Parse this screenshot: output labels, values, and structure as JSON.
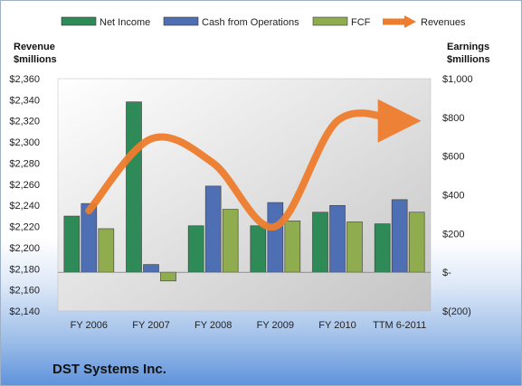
{
  "chart_data": {
    "type": "bar",
    "title": "DST Systems Inc.",
    "categories": [
      "FY 2006",
      "FY 2007",
      "FY 2008",
      "FY 2009",
      "FY 2010",
      "TTM 6-2011"
    ],
    "y_left": {
      "label_line1": "Revenue",
      "label_line2": "$millions",
      "ylim": [
        2140,
        2360
      ],
      "ticks": [
        2140,
        2160,
        2180,
        2200,
        2220,
        2240,
        2260,
        2280,
        2300,
        2320,
        2340,
        2360
      ],
      "tick_labels": [
        "$2,140",
        "$2,160",
        "$2,180",
        "$2,200",
        "$2,220",
        "$2,240",
        "$2,260",
        "$2,280",
        "$2,300",
        "$2,320",
        "$2,340",
        "$2,360"
      ]
    },
    "y_right": {
      "label_line1": "Earnings",
      "label_line2": "$millions",
      "ylim": [
        -200,
        1000
      ],
      "ticks": [
        -200,
        0,
        200,
        400,
        600,
        800,
        1000
      ],
      "tick_labels": [
        "$(200)",
        "$-",
        "$200",
        "$400",
        "$600",
        "$800",
        "$1,000"
      ]
    },
    "bar_series": [
      {
        "name": "Net Income",
        "color": "#2e8b57",
        "axis": "right",
        "values": [
          290,
          880,
          240,
          240,
          310,
          250
        ]
      },
      {
        "name": "Cash from Operations",
        "color": "#4f6fb5",
        "axis": "right",
        "values": [
          355,
          40,
          445,
          360,
          345,
          375
        ]
      },
      {
        "name": "FCF",
        "color": "#8fac4e",
        "axis": "right",
        "values": [
          225,
          -45,
          325,
          265,
          260,
          310
        ]
      }
    ],
    "line_series": [
      {
        "name": "Revenues",
        "color": "#ee7d2e",
        "axis": "left",
        "values": [
          2235,
          2303,
          2280,
          2220,
          2320,
          2320
        ]
      }
    ],
    "grid": false,
    "legend_position": "top"
  }
}
